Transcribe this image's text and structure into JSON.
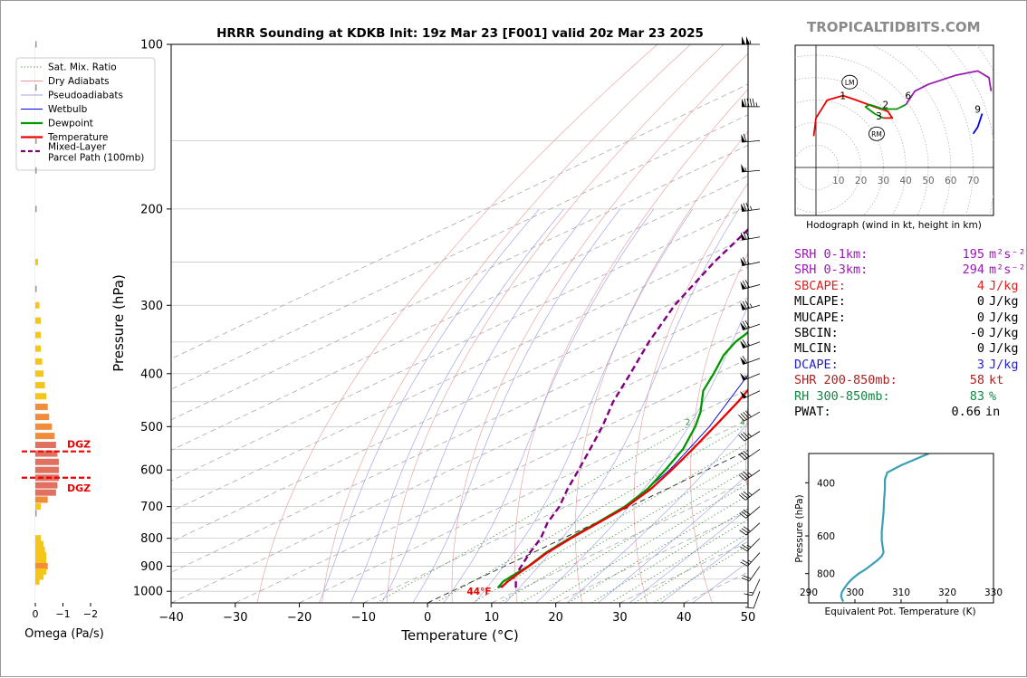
{
  "site": "TROPICALTIDBITS.COM",
  "chart_data": {
    "type": "skew-t",
    "title": "HRRR Sounding at KDKB Init: 19z Mar 23 [F001] valid 20z Mar 23 2025",
    "xlabel": "Temperature (°C)",
    "ylabel": "Pressure (hPa)",
    "xlim": [
      -40,
      50
    ],
    "ylim": [
      1050,
      100
    ],
    "y_log": true,
    "x_ticks": [
      "−40",
      "−30",
      "−20",
      "−10",
      "0",
      "10",
      "20",
      "30",
      "40",
      "50"
    ],
    "y_ticks": [
      "100",
      "200",
      "300",
      "400",
      "500",
      "600",
      "700",
      "800",
      "900",
      "1000"
    ],
    "grid": true,
    "legend": {
      "placement": "top-left",
      "entries": [
        {
          "label": "Sat. Mix. Ratio",
          "color": "#2e8b2e",
          "style": "dotted"
        },
        {
          "label": "Dry Adiabats",
          "color": "#e07070",
          "style": "solid"
        },
        {
          "label": "Pseudoadiabats",
          "color": "#8888cc",
          "style": "solid"
        },
        {
          "label": "Wetbulb",
          "color": "#0000dd",
          "style": "solid"
        },
        {
          "label": "Dewpoint",
          "color": "#009900",
          "style": "solid"
        },
        {
          "label": "Temperature",
          "color": "#ee0000",
          "style": "solid"
        },
        {
          "label": "Mixed-Layer\nParcel Path (100mb)",
          "color": "#800080",
          "style": "dashed"
        }
      ]
    },
    "mixing_ratio_labels": [
      "2",
      "4",
      "6",
      "8",
      "10",
      "13",
      "16",
      "20",
      "24",
      "30",
      "36"
    ],
    "surface_label": "44°F",
    "series": [
      {
        "name": "Temperature",
        "p": [
          985,
          960,
          930,
          900,
          850,
          800,
          750,
          700,
          650,
          600,
          550,
          500,
          450,
          400,
          370,
          350,
          320,
          300,
          280,
          270,
          250,
          220,
          200,
          170,
          150,
          130,
          115,
          100
        ],
        "t": [
          6.5,
          5.5,
          4.6,
          3.8,
          2.2,
          1.2,
          0.4,
          -0.5,
          -2.5,
          -5.5,
          -9,
          -13,
          -17.5,
          -23,
          -27,
          -28.5,
          -30,
          -32,
          -34,
          -34,
          -35,
          -38.5,
          -42,
          -47,
          -53,
          -59,
          -64,
          -70
        ]
      },
      {
        "name": "Dewpoint",
        "p": [
          985,
          960,
          930,
          900,
          850,
          800,
          750,
          700,
          650,
          600,
          550,
          500,
          470,
          430,
          400,
          370,
          350,
          300,
          260,
          230,
          200,
          170,
          150,
          130,
          115,
          100
        ],
        "t": [
          6.0,
          4.8,
          4.2,
          3.7,
          2.0,
          1.0,
          0.2,
          -0.8,
          -3,
          -6.5,
          -10.5,
          -16,
          -20,
          -26.5,
          -30.5,
          -35,
          -37.5,
          -42,
          -47,
          -52,
          -57,
          -65,
          -70,
          -75,
          -80,
          -84
        ]
      },
      {
        "name": "Wetbulb",
        "p": [
          985,
          950,
          900,
          850,
          800,
          700,
          600,
          500,
          400,
          300,
          250,
          200,
          150,
          100
        ],
        "t": [
          6.2,
          5.3,
          3.7,
          2.1,
          1.1,
          -0.6,
          -5.8,
          -13.8,
          -25,
          -33,
          -35.5,
          -42.5,
          -53.5,
          -70.5
        ]
      },
      {
        "name": "Mixed-Layer\nParcel Path (100mb)",
        "p": [
          985,
          960,
          940,
          920,
          900,
          850,
          800,
          750,
          700,
          650,
          600,
          550,
          500,
          450,
          400,
          350,
          300,
          250,
          220,
          200
        ],
        "t": [
          8.8,
          6.8,
          4.8,
          3.8,
          2.6,
          -0.5,
          -3.5,
          -7.5,
          -11,
          -15.5,
          -20,
          -25,
          -30.5,
          -37,
          -43.5,
          -51,
          -59,
          -67,
          -72,
          -76
        ]
      }
    ],
    "wind_barbs": [
      {
        "p": 100,
        "dir": 270,
        "kt": 105
      },
      {
        "p": 130,
        "dir": 270,
        "kt": 95
      },
      {
        "p": 150,
        "dir": 265,
        "kt": 60
      },
      {
        "p": 170,
        "dir": 265,
        "kt": 55
      },
      {
        "p": 200,
        "dir": 262,
        "kt": 75
      },
      {
        "p": 225,
        "dir": 260,
        "kt": 70
      },
      {
        "p": 250,
        "dir": 258,
        "kt": 65
      },
      {
        "p": 275,
        "dir": 255,
        "kt": 70
      },
      {
        "p": 300,
        "dir": 255,
        "kt": 75
      },
      {
        "p": 325,
        "dir": 252,
        "kt": 70
      },
      {
        "p": 350,
        "dir": 250,
        "kt": 65
      },
      {
        "p": 375,
        "dir": 250,
        "kt": 60
      },
      {
        "p": 400,
        "dir": 248,
        "kt": 55
      },
      {
        "p": 430,
        "dir": 245,
        "kt": 50
      },
      {
        "p": 470,
        "dir": 240,
        "kt": 40
      },
      {
        "p": 510,
        "dir": 238,
        "kt": 35
      },
      {
        "p": 550,
        "dir": 235,
        "kt": 30
      },
      {
        "p": 600,
        "dir": 235,
        "kt": 35
      },
      {
        "p": 650,
        "dir": 232,
        "kt": 35
      },
      {
        "p": 700,
        "dir": 230,
        "kt": 30
      },
      {
        "p": 750,
        "dir": 228,
        "kt": 30
      },
      {
        "p": 800,
        "dir": 225,
        "kt": 25
      },
      {
        "p": 850,
        "dir": 222,
        "kt": 25
      },
      {
        "p": 900,
        "dir": 215,
        "kt": 20
      },
      {
        "p": 950,
        "dir": 205,
        "kt": 15
      },
      {
        "p": 1000,
        "dir": 200,
        "kt": 10
      }
    ],
    "omega_panel": {
      "xlabel": "Omega (Pa/s)",
      "x_ticks": [
        "0",
        "−1",
        "−2"
      ],
      "xlim": [
        0,
        -2.5
      ],
      "dgz_label": "DGZ",
      "dgz_bounds_hpa": [
        555,
        620
      ],
      "p": [
        100,
        120,
        150,
        170,
        200,
        250,
        280,
        300,
        320,
        340,
        360,
        380,
        400,
        420,
        440,
        460,
        480,
        500,
        520,
        540,
        560,
        580,
        600,
        620,
        640,
        660,
        680,
        700,
        720,
        800,
        820,
        840,
        860,
        880,
        900,
        920,
        940,
        960
      ],
      "omega": [
        -0.05,
        -0.05,
        -0.05,
        -0.05,
        -0.05,
        -0.1,
        -0.05,
        -0.15,
        -0.2,
        -0.2,
        -0.2,
        -0.25,
        -0.3,
        -0.35,
        -0.4,
        -0.45,
        -0.5,
        -0.6,
        -0.7,
        -0.75,
        -0.8,
        -0.85,
        -0.85,
        -0.85,
        -0.8,
        -0.75,
        -0.45,
        -0.2,
        -0.05,
        -0.2,
        -0.3,
        -0.35,
        -0.4,
        -0.4,
        -0.45,
        -0.4,
        -0.3,
        -0.15
      ],
      "colors": {
        "weak": "#f5c518",
        "moderate": "#f08c3a",
        "strong": "#e07060",
        "neutral": "#999999"
      }
    },
    "hodograph": {
      "caption": "Hodograph (wind in kt, height in km)",
      "ring_labels": [
        "10",
        "20",
        "30",
        "40",
        "50",
        "60",
        "70"
      ],
      "storm_labels": [
        "LM",
        "RM"
      ],
      "segments": [
        {
          "color": "#ee0000",
          "u": [
            -1,
            0,
            5,
            12,
            18,
            26,
            32,
            34,
            30
          ],
          "v": [
            14,
            22,
            30,
            32,
            30,
            27,
            25,
            22,
            22
          ]
        },
        {
          "color": "#009900",
          "u": [
            30,
            26,
            22,
            24,
            30,
            36,
            40
          ],
          "v": [
            22,
            24,
            27,
            28,
            26,
            26,
            28
          ]
        },
        {
          "color": "#9b19b5",
          "u": [
            40,
            44,
            50,
            62,
            72,
            77,
            78
          ],
          "v": [
            28,
            34,
            37,
            41,
            43,
            40,
            34
          ]
        },
        {
          "color": "#0000ee",
          "u": [
            74,
            72,
            70
          ],
          "v": [
            24,
            18,
            15
          ]
        }
      ],
      "point_labels": [
        {
          "text": "1",
          "u": 12,
          "v": 32
        },
        {
          "text": "2",
          "u": 31,
          "v": 28
        },
        {
          "text": "3",
          "u": 28,
          "v": 23
        },
        {
          "text": "6",
          "u": 41,
          "v": 32
        },
        {
          "text": "9",
          "u": 72,
          "v": 26
        }
      ],
      "lm": {
        "u": 15,
        "v": 38
      },
      "rm": {
        "u": 27,
        "v": 15
      }
    },
    "theta_e_panel": {
      "xlabel": "Equivalent Pot. Temperature (K)",
      "ylabel": "Pressure (hPa)",
      "x_ticks": [
        "290",
        "300",
        "310",
        "320",
        "330"
      ],
      "xlim": [
        290,
        330
      ],
      "y_ticks": [
        "400",
        "600",
        "800"
      ],
      "ylim": [
        320,
        1000
      ],
      "color": "#3a9fb5",
      "p": [
        320,
        350,
        370,
        390,
        420,
        460,
        500,
        540,
        580,
        620,
        650,
        680,
        700,
        720,
        740,
        760,
        780,
        800,
        830,
        860,
        890,
        920,
        950,
        980,
        990
      ],
      "theta_e": [
        316,
        310,
        307,
        306.5,
        306.5,
        306.3,
        306.2,
        306,
        305.8,
        305.8,
        306,
        306.2,
        305.8,
        305,
        304,
        303,
        302,
        300.8,
        299.5,
        298.5,
        297.8,
        297.2,
        297,
        297.3,
        297.5
      ]
    }
  },
  "params": [
    {
      "label": "SRH 0-1km:",
      "value": "195",
      "unit": "m²s⁻²",
      "color": "#9b19b5"
    },
    {
      "label": "SRH 0-3km:",
      "value": "294",
      "unit": "m²s⁻²",
      "color": "#9b19b5"
    },
    {
      "label": "SBCAPE:",
      "value": "4",
      "unit": "J/kg",
      "color": "#dd2222"
    },
    {
      "label": "MLCAPE:",
      "value": "0",
      "unit": "J/kg",
      "color": "#000000"
    },
    {
      "label": "MUCAPE:",
      "value": "0",
      "unit": "J/kg",
      "color": "#000000"
    },
    {
      "label": "SBCIN:",
      "value": "-0",
      "unit": "J/kg",
      "color": "#000000"
    },
    {
      "label": "MLCIN:",
      "value": "0",
      "unit": "J/kg",
      "color": "#000000"
    },
    {
      "label": "DCAPE:",
      "value": "3",
      "unit": "J/kg",
      "color": "#2222cc"
    },
    {
      "label": "SHR 200-850mb:",
      "value": "58",
      "unit": "kt",
      "color": "#aa2222"
    },
    {
      "label": "RH 300-850mb:",
      "value": "83",
      "unit": "%",
      "color": "#118844"
    },
    {
      "label": "PWAT:",
      "value": "0.66",
      "unit": "in",
      "color": "#000000"
    }
  ]
}
